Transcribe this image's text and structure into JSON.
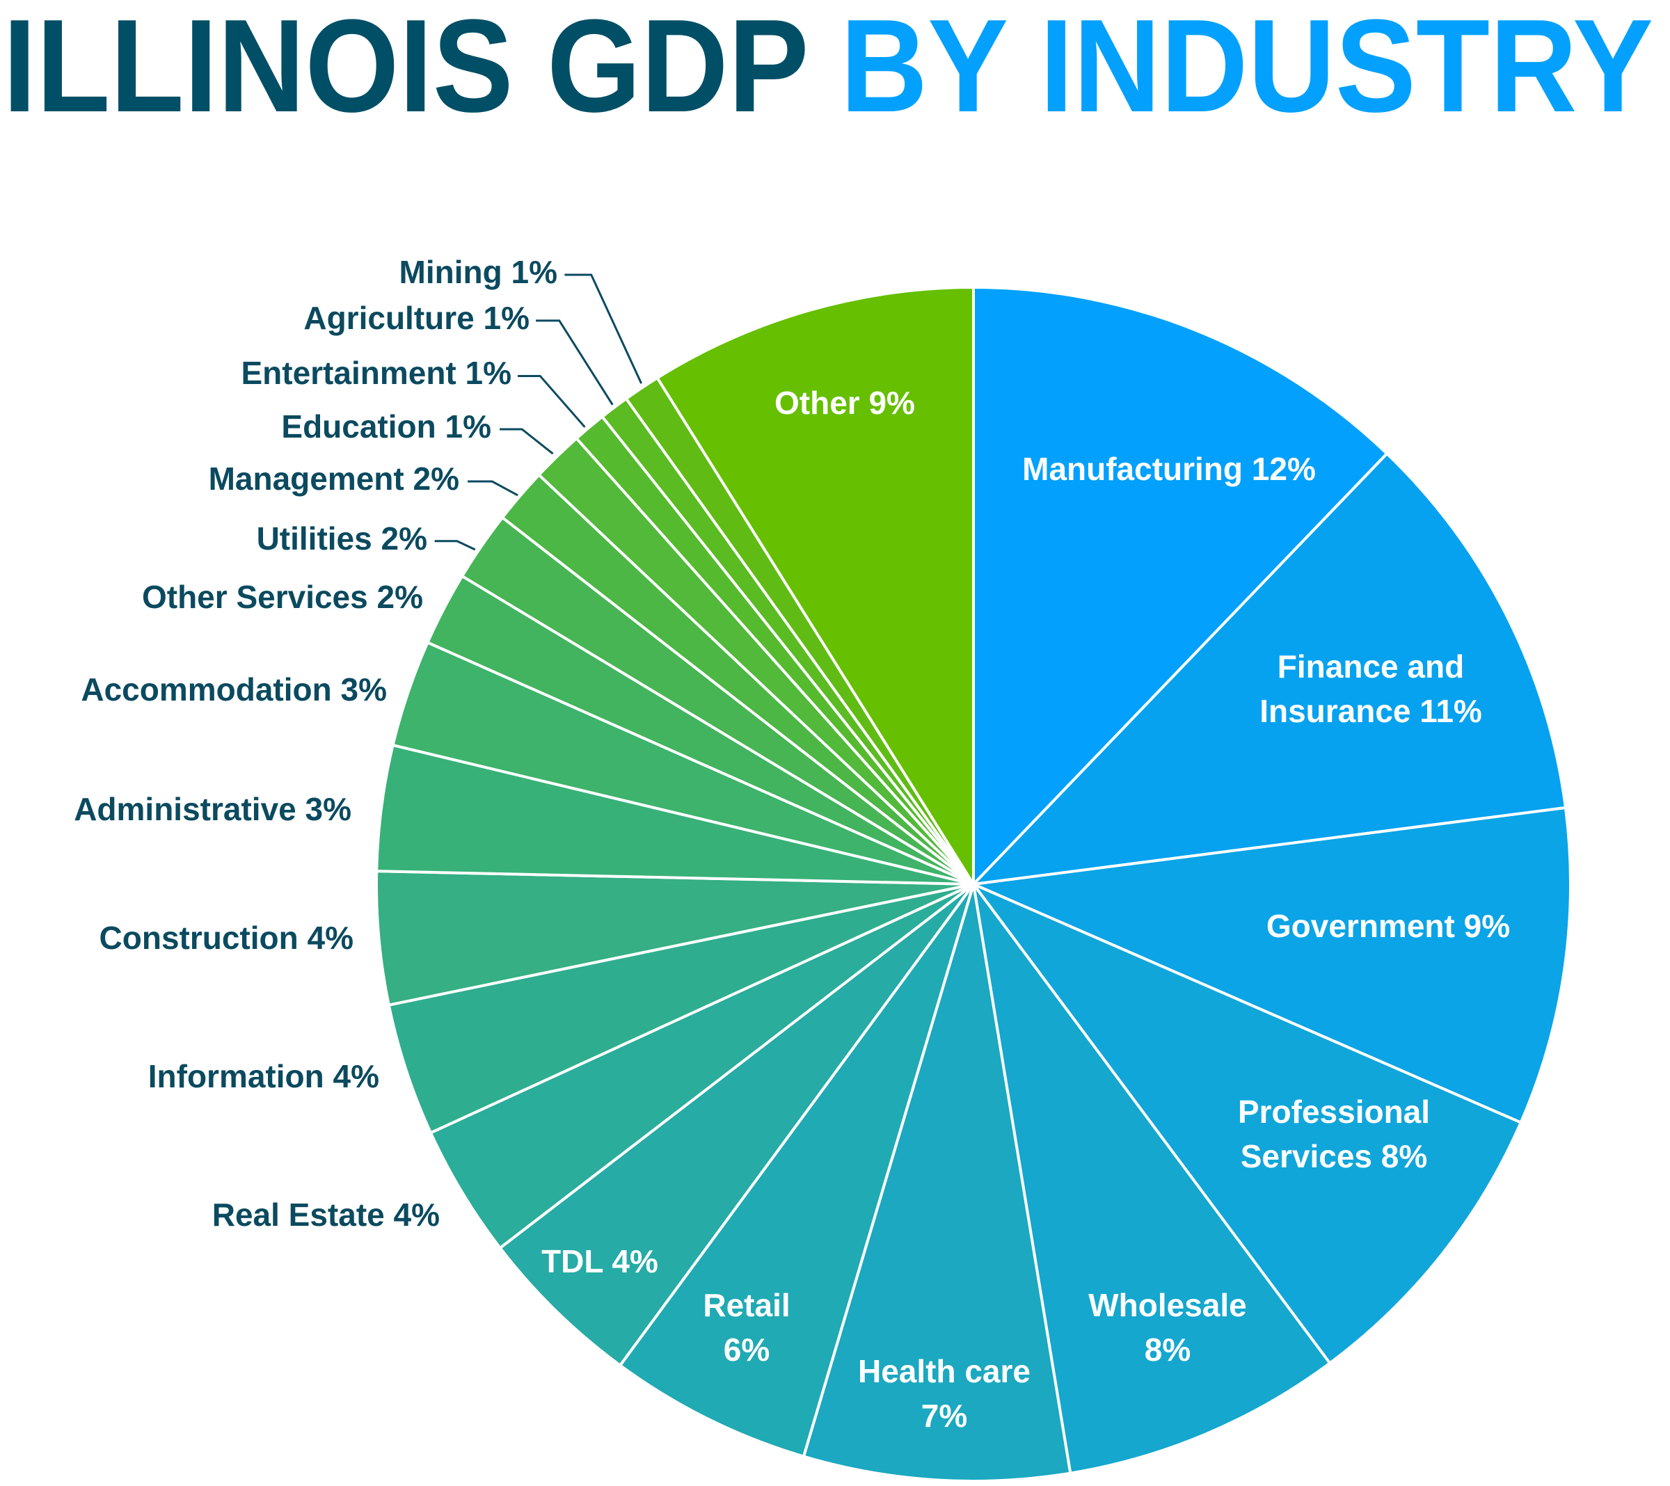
{
  "title": {
    "part1": "ILLINOIS GDP",
    "part2": "BY INDUSTRY",
    "color1": "#004f66",
    "color2": "#03a1fd"
  },
  "chart_data": {
    "type": "pie",
    "title": "ILLINOIS GDP BY INDUSTRY",
    "start": "top, clockwise",
    "slices": [
      {
        "name": "Manufacturing",
        "label": [
          "Manufacturing 12%"
        ],
        "printed_pct": 12,
        "value": 12.2,
        "color": "#03a1fd"
      },
      {
        "name": "Finance and Insurance",
        "label": [
          "Finance and",
          "Insurance 11%"
        ],
        "printed_pct": 11,
        "value": 10.8,
        "color": "#06a2f0"
      },
      {
        "name": "Government",
        "label": [
          "Government 9%"
        ],
        "printed_pct": 9,
        "value": 8.6,
        "color": "#0ba4e6"
      },
      {
        "name": "Professional Services",
        "label": [
          "Professional",
          "Services 8%"
        ],
        "printed_pct": 8,
        "value": 8.3,
        "color": "#11a6da"
      },
      {
        "name": "Wholesale",
        "label": [
          "Wholesale",
          "8%"
        ],
        "printed_pct": 8,
        "value": 7.6,
        "color": "#15a7cd"
      },
      {
        "name": "Health care",
        "label": [
          "Health care",
          "7%"
        ],
        "printed_pct": 7,
        "value": 7.2,
        "color": "#1ba8c0"
      },
      {
        "name": "Retail",
        "label": [
          "Retail",
          "6%"
        ],
        "printed_pct": 6,
        "value": 5.5,
        "color": "#20aab3"
      },
      {
        "name": "TDL",
        "label": [
          "TDL 4%"
        ],
        "printed_pct": 4,
        "value": 4.5,
        "color": "#26aba6"
      },
      {
        "name": "Real Estate",
        "label": [
          "Real Estate 4%"
        ],
        "printed_pct": 4,
        "value": 3.6,
        "color": "#2aad9a"
      },
      {
        "name": "Information",
        "label": [
          "Information 4%"
        ],
        "printed_pct": 4,
        "value": 3.6,
        "color": "#2fae8f"
      },
      {
        "name": "Construction",
        "label": [
          "Construction 4%"
        ],
        "printed_pct": 4,
        "value": 3.6,
        "color": "#35af83"
      },
      {
        "name": "Administrative",
        "label": [
          "Administrative 3%"
        ],
        "printed_pct": 3,
        "value": 3.4,
        "color": "#38b178"
      },
      {
        "name": "Accommodation",
        "label": [
          "Accommodation 3%"
        ],
        "printed_pct": 3,
        "value": 2.9,
        "color": "#3db36c"
      },
      {
        "name": "Other Services",
        "label": [
          "Other Services 2%"
        ],
        "printed_pct": 2,
        "value": 2.0,
        "color": "#42b45f"
      },
      {
        "name": "Utilities",
        "label": [
          "Utilities 2%"
        ],
        "printed_pct": 2,
        "value": 1.9,
        "color": "#47b553"
      },
      {
        "name": "Management",
        "label": [
          "Management 2%"
        ],
        "printed_pct": 2,
        "value": 1.5,
        "color": "#4cb745"
      },
      {
        "name": "Education",
        "label": [
          "Education 1%"
        ],
        "printed_pct": 1,
        "value": 1.4,
        "color": "#52b93a"
      },
      {
        "name": "Entertainment",
        "label": [
          "Entertainment 1%"
        ],
        "printed_pct": 1,
        "value": 0.9,
        "color": "#56ba2e"
      },
      {
        "name": "Agriculture",
        "label": [
          "Agriculture 1%"
        ],
        "printed_pct": 1,
        "value": 0.8,
        "color": "#5bbb22"
      },
      {
        "name": "Mining",
        "label": [
          "Mining 1%"
        ],
        "printed_pct": 1,
        "value": 1.0,
        "color": "#60bc14"
      },
      {
        "name": "Other",
        "label": [
          "Other 9%"
        ],
        "printed_pct": 9,
        "value": 8.9,
        "color": "#66bf00"
      }
    ],
    "label_color_outside": "#0b4a5f",
    "label_color_inside": "#ffffff"
  }
}
